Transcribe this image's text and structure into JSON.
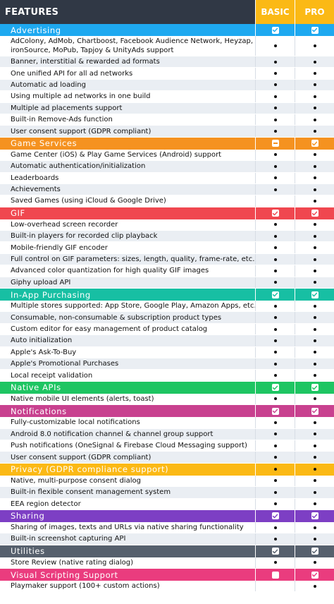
{
  "header": {
    "features": "FEATURES",
    "basic": "BASIC",
    "pro": "PRO"
  },
  "sections": [
    {
      "title": "Advertising",
      "color": "#1ea9f0",
      "basic": "check",
      "pro": "check",
      "items": [
        {
          "label": "AdColony, AdMob, Chartboost, Facebook Audience Network, Heyzap, ironSource, MoPub, Tapjoy & UnityAds support",
          "basic": "dot",
          "pro": "dot",
          "twoline": true
        },
        {
          "label": "Banner, interstitial & rewarded ad formats",
          "basic": "dot",
          "pro": "dot"
        },
        {
          "label": "One unified API for all ad networks",
          "basic": "dot",
          "pro": "dot"
        },
        {
          "label": "Automatic ad loading",
          "basic": "dot",
          "pro": "dot"
        },
        {
          "label": "Using multiple ad networks in one build",
          "basic": "dot",
          "pro": "dot"
        },
        {
          "label": "Multiple ad placements support",
          "basic": "dot",
          "pro": "dot"
        },
        {
          "label": "Built-in Remove-Ads function",
          "basic": "dot",
          "pro": "dot"
        },
        {
          "label": "User consent support (GDPR compliant)",
          "basic": "dot",
          "pro": "dot"
        }
      ]
    },
    {
      "title": "Game Services",
      "color": "#f59220",
      "basic": "minus",
      "pro": "check",
      "items": [
        {
          "label": "Game Center (iOS) & Play Game Services (Android) support",
          "basic": "dot",
          "pro": "dot"
        },
        {
          "label": "Automatic authentication/initialization",
          "basic": "dot",
          "pro": "dot"
        },
        {
          "label": "Leaderboards",
          "basic": "dot",
          "pro": "dot"
        },
        {
          "label": "Achievements",
          "basic": "dot",
          "pro": "dot"
        },
        {
          "label": "Saved Games (using iCloud & Google Drive)",
          "basic": "",
          "pro": "dot"
        }
      ]
    },
    {
      "title": "GIF",
      "color": "#f0474f",
      "basic": "check",
      "pro": "check",
      "items": [
        {
          "label": "Low-overhead screen recorder",
          "basic": "dot",
          "pro": "dot"
        },
        {
          "label": "Built-in players for recorded clip playback",
          "basic": "dot",
          "pro": "dot"
        },
        {
          "label": "Mobile-friendly GIF encoder",
          "basic": "dot",
          "pro": "dot"
        },
        {
          "label": "Full control on GIF parameters: sizes, length, quality, frame-rate, etc.",
          "basic": "dot",
          "pro": "dot"
        },
        {
          "label": "Advanced color quantization for high quality GIF images",
          "basic": "dot",
          "pro": "dot"
        },
        {
          "label": "Giphy upload API",
          "basic": "dot",
          "pro": "dot"
        }
      ]
    },
    {
      "title": "In-App Purchasing",
      "color": "#17bfa3",
      "basic": "check",
      "pro": "check",
      "items": [
        {
          "label": "Multiple stores supported: App Store, Google Play, Amazon Apps, etc.",
          "basic": "dot",
          "pro": "dot"
        },
        {
          "label": "Consumable, non-consumable & subscription product types",
          "basic": "dot",
          "pro": "dot"
        },
        {
          "label": "Custom editor for easy management of product catalog",
          "basic": "dot",
          "pro": "dot"
        },
        {
          "label": "Auto initialization",
          "basic": "dot",
          "pro": "dot"
        },
        {
          "label": "Apple's Ask-To-Buy",
          "basic": "dot",
          "pro": "dot"
        },
        {
          "label": "Apple's Promotional Purchases",
          "basic": "dot",
          "pro": "dot"
        },
        {
          "label": "Local receipt validation",
          "basic": "dot",
          "pro": "dot"
        }
      ]
    },
    {
      "title": "Native APIs",
      "color": "#1ec562",
      "basic": "check",
      "pro": "check",
      "items": [
        {
          "label": "Native mobile UI elements (alerts, toast)",
          "basic": "dot",
          "pro": "dot"
        }
      ]
    },
    {
      "title": "Notifications",
      "color": "#c8418f",
      "basic": "check",
      "pro": "check",
      "items": [
        {
          "label": "Fully-customizable local notifications",
          "basic": "dot",
          "pro": "dot"
        },
        {
          "label": "Android 8.0 notification channel & channel group support",
          "basic": "dot",
          "pro": "dot"
        },
        {
          "label": "Push notifications (OneSignal & Firebase Cloud Messaging support)",
          "basic": "dot",
          "pro": "dot"
        },
        {
          "label": "User consent support (GDPR compliant)",
          "basic": "dot",
          "pro": "dot"
        }
      ]
    },
    {
      "title": "Privacy (GDPR compliance support)",
      "color": "#fbb915",
      "basic": "dot",
      "pro": "dot",
      "items": [
        {
          "label": "Native, multi-purpose consent dialog",
          "basic": "dot",
          "pro": "dot"
        },
        {
          "label": "Built-in flexible consent management system",
          "basic": "dot",
          "pro": "dot"
        },
        {
          "label": "EEA region detector",
          "basic": "dot",
          "pro": "dot"
        }
      ]
    },
    {
      "title": "Sharing",
      "color": "#7d3fc4",
      "basic": "check",
      "pro": "check",
      "items": [
        {
          "label": "Sharing of images, texts and URLs via native sharing functionality",
          "basic": "dot",
          "pro": "dot"
        },
        {
          "label": "Built-in screenshot capturing API",
          "basic": "dot",
          "pro": "dot"
        }
      ]
    },
    {
      "title": "Utilities",
      "color": "#56606d",
      "basic": "check",
      "pro": "check",
      "items": [
        {
          "label": "Store Review (native rating dialog)",
          "basic": "dot",
          "pro": "dot"
        }
      ]
    },
    {
      "title": "Visual Scripting Support",
      "color": "#ea3c7e",
      "basic": "empty",
      "pro": "check",
      "items": [
        {
          "label": "Playmaker support (100+ custom actions)",
          "basic": "",
          "pro": "dot"
        }
      ]
    }
  ]
}
